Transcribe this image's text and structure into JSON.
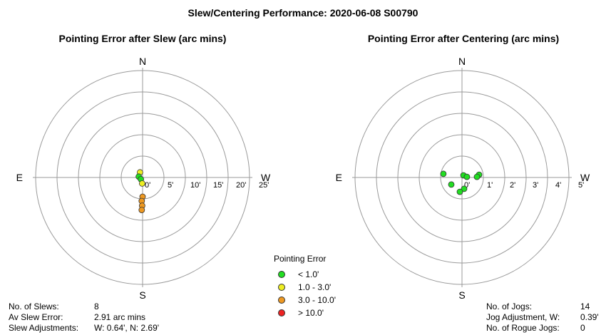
{
  "main_title": "Slew/Centering Performance: 2020-06-08 S00790",
  "legend": {
    "title": "Pointing Error",
    "items": [
      {
        "label": "< 1.0'",
        "color": "#22dd22"
      },
      {
        "label": "1.0 - 3.0'",
        "color": "#eeee22"
      },
      {
        "label": "3.0 - 10.0'",
        "color": "#ee9922"
      },
      {
        "label": "> 10.0'",
        "color": "#ee2222"
      }
    ]
  },
  "slew_stats": [
    {
      "label": "No. of Slews:",
      "value": "8"
    },
    {
      "label": "Av Slew Error:",
      "value": "2.91 arc mins"
    },
    {
      "label": "Slew Adjustments:",
      "value": "W: 0.64', N: 2.69'"
    }
  ],
  "centering_stats": [
    {
      "label": "No. of Jogs:",
      "value": "14"
    },
    {
      "label": "Jog Adjustment, W:",
      "value": "0.39'"
    },
    {
      "label": "No. of Rogue Jogs:",
      "value": "0"
    }
  ],
  "chart_data": [
    {
      "type": "scatter",
      "title": "Pointing Error after Slew (arc mins)",
      "coordinate_system": "polar-compass",
      "directions": {
        "N": "N",
        "S": "S",
        "E": "E",
        "W": "W"
      },
      "rmax": 25,
      "rings": [
        5,
        10,
        15,
        20,
        25
      ],
      "ring_labels": [
        "0'",
        "5'",
        "10'",
        "15'",
        "20'",
        "25'"
      ],
      "x_positive": "W",
      "points": [
        {
          "x": -0.6,
          "y": 1.2
        },
        {
          "x": -0.9,
          "y": 0.2
        },
        {
          "x": -0.4,
          "y": -0.4
        },
        {
          "x": -0.1,
          "y": -1.4
        },
        {
          "x": 0.0,
          "y": -4.5
        },
        {
          "x": -0.2,
          "y": -5.5
        },
        {
          "x": -0.1,
          "y": -6.6
        },
        {
          "x": -0.2,
          "y": -7.6
        }
      ]
    },
    {
      "type": "scatter",
      "title": "Pointing Error after Centering (arc mins)",
      "coordinate_system": "polar-compass",
      "directions": {
        "N": "N",
        "S": "S",
        "E": "E",
        "W": "W"
      },
      "rmax": 5,
      "rings": [
        1,
        2,
        3,
        4,
        5
      ],
      "ring_labels": [
        "0'",
        "1'",
        "2'",
        "3'",
        "4'",
        "5'"
      ],
      "x_positive": "W",
      "points": [
        {
          "x": -0.87,
          "y": 0.17
        },
        {
          "x": 0.07,
          "y": 0.1
        },
        {
          "x": 0.23,
          "y": 0.03
        },
        {
          "x": 0.8,
          "y": 0.13
        },
        {
          "x": 0.7,
          "y": 0.03
        },
        {
          "x": -0.5,
          "y": -0.33
        },
        {
          "x": 0.1,
          "y": -0.53
        },
        {
          "x": -0.1,
          "y": -0.67
        }
      ]
    }
  ]
}
